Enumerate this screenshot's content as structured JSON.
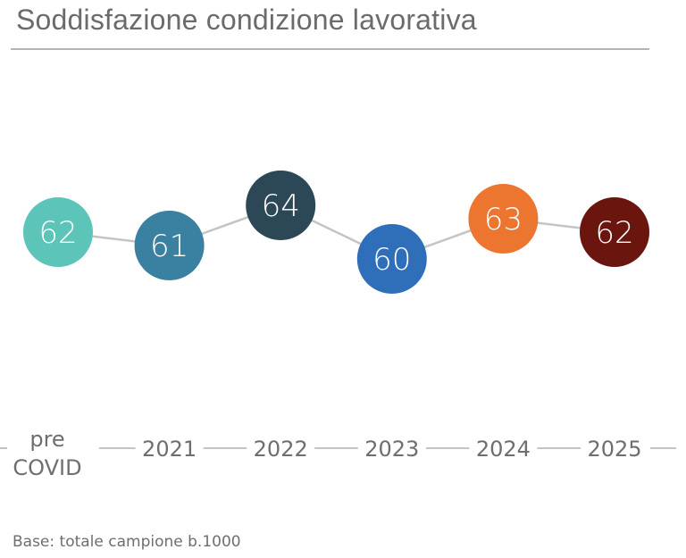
{
  "chart_data": {
    "type": "line",
    "title": "Soddisfazione condizione lavorativa",
    "xlabel": "",
    "ylabel": "",
    "categories": [
      "pre COVID",
      "2021",
      "2022",
      "2023",
      "2024",
      "2025"
    ],
    "category_lines": [
      [
        "pre",
        "COVID"
      ],
      [
        "2021"
      ],
      [
        "2022"
      ],
      [
        "2023"
      ],
      [
        "2024"
      ],
      [
        "2025"
      ]
    ],
    "series": [
      {
        "name": "Soddisfazione condizione lavorativa",
        "values": [
          62,
          61,
          64,
          60,
          63,
          62
        ],
        "colors": [
          "#5cc4b9",
          "#3a81a1",
          "#2c4755",
          "#2f6fba",
          "#ec752f",
          "#6b150f"
        ]
      }
    ],
    "ylim": [
      58,
      66
    ],
    "grid": false,
    "legend": "none",
    "data_labels": true,
    "line_color": "#c4c4c4",
    "axis_color": "#a0a0a0",
    "label_color": "#6e6e6e"
  },
  "footnote": "Base: totale campione b.1000"
}
